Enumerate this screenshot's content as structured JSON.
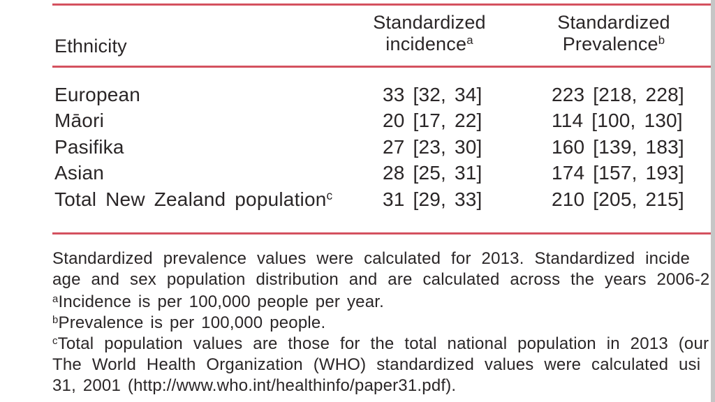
{
  "table": {
    "header": {
      "ethnicity": "Ethnicity",
      "incidence_line1": "Standardized",
      "incidence_line2": "incidence",
      "incidence_sup": "a",
      "prevalence_line1": "Standardized",
      "prevalence_line2": "Prevalence",
      "prevalence_sup": "b"
    },
    "rows": [
      {
        "ethnicity": "European",
        "ethnicity_sup": "",
        "incidence": "33 [32, 34]",
        "prevalence": "223 [218, 228]"
      },
      {
        "ethnicity": "Māori",
        "ethnicity_sup": "",
        "incidence": "20 [17, 22]",
        "prevalence": "114 [100, 130]"
      },
      {
        "ethnicity": "Pasifika",
        "ethnicity_sup": "",
        "incidence": "27 [23, 30]",
        "prevalence": "160 [139, 183]"
      },
      {
        "ethnicity": "Asian",
        "ethnicity_sup": "",
        "incidence": "28 [25, 31]",
        "prevalence": "174 [157, 193]"
      },
      {
        "ethnicity": "Total New Zealand population",
        "ethnicity_sup": "c",
        "incidence": "31 [29, 33]",
        "prevalence": "210 [205, 215]"
      }
    ]
  },
  "footnotes": {
    "lines": [
      {
        "sup": "",
        "text": "Standardized prevalence values were calculated for 2013. Standardized incide"
      },
      {
        "sup": "",
        "text": "age and sex population distribution and are calculated across the years 2006-2"
      },
      {
        "sup": "a",
        "text": "Incidence is per 100,000 people per year."
      },
      {
        "sup": "b",
        "text": "Prevalence is per 100,000 people."
      },
      {
        "sup": "c",
        "text": "Total population values are those for the total national population in 2013 (our"
      },
      {
        "sup": "",
        "text": "The World Health Organization (WHO) standardized values were calculated usi"
      },
      {
        "sup": "",
        "text": "31, 2001 (http://www.who.int/healthinfo/paper31.pdf)."
      }
    ]
  },
  "colors": {
    "rule_red": "#d4515f",
    "text": "#2a2627",
    "edge_strip": "#c6c6c6"
  }
}
